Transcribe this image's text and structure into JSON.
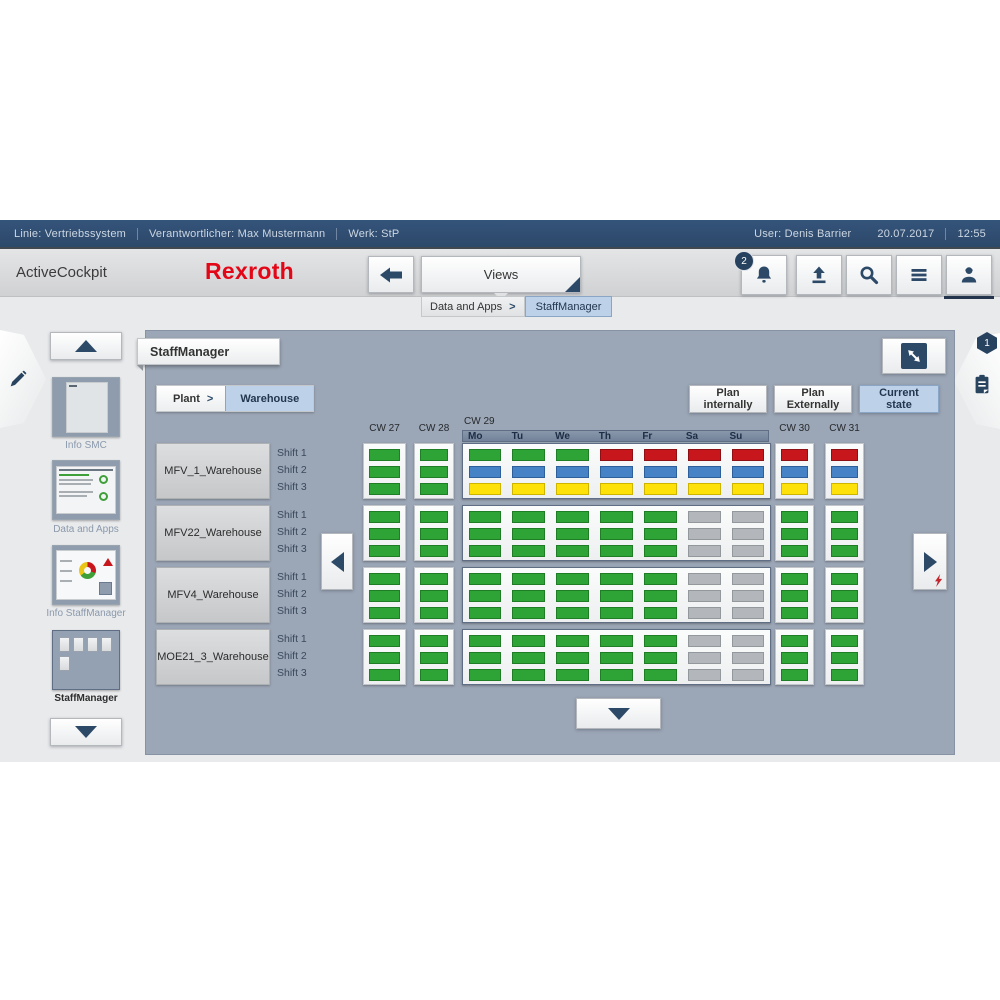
{
  "status_bar": {
    "left_items": [
      "Linie: Vertriebssystem",
      "Verantwortlicher: Max Mustermann",
      "Werk: StP"
    ],
    "user": "User: Denis Barrier",
    "date": "20.07.2017",
    "time": "12:55"
  },
  "header": {
    "app_title": "ActiveCockpit",
    "brand": "Rexroth",
    "views_label": "Views",
    "notification_count": "2",
    "breadcrumb": {
      "parent": "Data and Apps",
      "separator": ">",
      "current": "StaffManager"
    },
    "icons": [
      "back-icon",
      "bell-icon",
      "upload-icon",
      "search-icon",
      "menu-icon",
      "user-icon"
    ]
  },
  "sidebar": {
    "items": [
      {
        "label": "Info SMC",
        "selected": false
      },
      {
        "label": "Data and Apps",
        "selected": false
      },
      {
        "label": "Info StaffManager",
        "selected": false
      },
      {
        "label": "StaffManager",
        "selected": true
      }
    ]
  },
  "flyouts": {
    "edit_icon": "pencil-icon",
    "clipboard_icon": "clipboard-icon",
    "clipboard_badge": "1"
  },
  "main": {
    "tab_title": "StaffManager",
    "location": {
      "parent": "Plant",
      "separator": ">",
      "current": "Warehouse"
    },
    "actions": [
      {
        "label": "Plan internally",
        "selected": false
      },
      {
        "label": "Plan Externally",
        "selected": false
      },
      {
        "label": "Current state",
        "selected": true
      }
    ],
    "board": {
      "weeks": [
        "CW 27",
        "CW 28",
        "CW 29",
        "CW 30",
        "CW 31"
      ],
      "expanded_week": "CW 29",
      "days": [
        "Mo",
        "Tu",
        "We",
        "Th",
        "Fr",
        "Sa",
        "Su"
      ],
      "shifts": [
        "Shift 1",
        "Shift 2",
        "Shift 3"
      ],
      "status_colors": {
        "green": "#2fa436",
        "red": "#c8161d",
        "blue": "#4583c6",
        "yellow": "#ffe10a",
        "gray": "#b3b7bc"
      },
      "rows": [
        {
          "name": "MFV_1_Warehouse",
          "cells": [
            [
              "green",
              "green",
              "green"
            ],
            [
              "green",
              "green",
              "green"
            ],
            [
              [
                "green",
                "green",
                "green",
                "red",
                "red",
                "red",
                "red"
              ],
              [
                "blue",
                "blue",
                "blue",
                "blue",
                "blue",
                "blue",
                "blue"
              ],
              [
                "yellow",
                "yellow",
                "yellow",
                "yellow",
                "yellow",
                "yellow",
                "yellow"
              ]
            ],
            [
              "red",
              "blue",
              "yellow"
            ],
            [
              "red",
              "blue",
              "yellow"
            ]
          ]
        },
        {
          "name": "MFV22_Warehouse",
          "cells": [
            [
              "green",
              "green",
              "green"
            ],
            [
              "green",
              "green",
              "green"
            ],
            [
              [
                "green",
                "green",
                "green",
                "green",
                "green",
                "gray",
                "gray"
              ],
              [
                "green",
                "green",
                "green",
                "green",
                "green",
                "gray",
                "gray"
              ],
              [
                "green",
                "green",
                "green",
                "green",
                "green",
                "gray",
                "gray"
              ]
            ],
            [
              "green",
              "green",
              "green"
            ],
            [
              "green",
              "green",
              "green"
            ]
          ]
        },
        {
          "name": "MFV4_Warehouse",
          "cells": [
            [
              "green",
              "green",
              "green"
            ],
            [
              "green",
              "green",
              "green"
            ],
            [
              [
                "green",
                "green",
                "green",
                "green",
                "green",
                "gray",
                "gray"
              ],
              [
                "green",
                "green",
                "green",
                "green",
                "green",
                "gray",
                "gray"
              ],
              [
                "green",
                "green",
                "green",
                "green",
                "green",
                "gray",
                "gray"
              ]
            ],
            [
              "green",
              "green",
              "green"
            ],
            [
              "green",
              "green",
              "green"
            ]
          ]
        },
        {
          "name": "MOE21_3_Warehouse",
          "cells": [
            [
              "green",
              "green",
              "green"
            ],
            [
              "green",
              "green",
              "green"
            ],
            [
              [
                "green",
                "green",
                "green",
                "green",
                "green",
                "gray",
                "gray"
              ],
              [
                "green",
                "green",
                "green",
                "green",
                "green",
                "gray",
                "gray"
              ],
              [
                "green",
                "green",
                "green",
                "green",
                "green",
                "gray",
                "gray"
              ]
            ],
            [
              "green",
              "green",
              "green"
            ],
            [
              "green",
              "green",
              "green"
            ]
          ]
        }
      ]
    }
  }
}
